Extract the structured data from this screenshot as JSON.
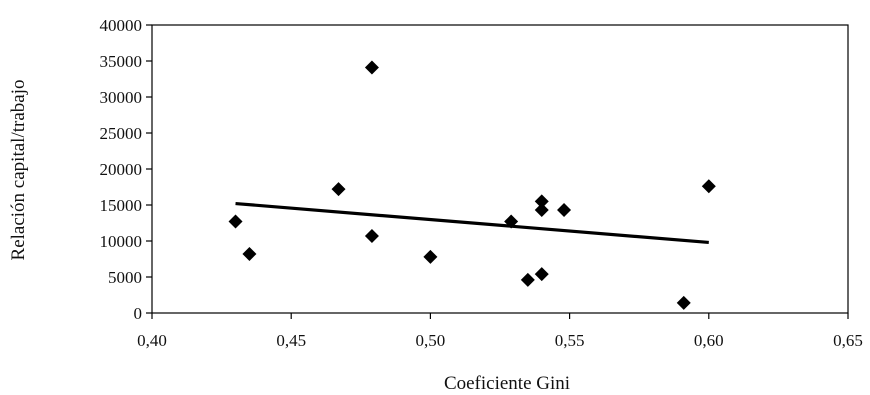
{
  "chart_data": {
    "type": "scatter",
    "title": "",
    "xlabel": "Coeficiente Gini",
    "ylabel": "Relación capital/trabajo",
    "xlim": [
      0.4,
      0.65
    ],
    "ylim": [
      0,
      40000
    ],
    "x_ticks": [
      "0,40",
      "0,45",
      "0,50",
      "0,55",
      "0,60",
      "0,65"
    ],
    "y_ticks": [
      "0",
      "5000",
      "10000",
      "15000",
      "20000",
      "25000",
      "30000",
      "35000",
      "40000"
    ],
    "grid": false,
    "legend": "none",
    "marker": "diamond",
    "colors": {
      "points": "#000000",
      "trendline": "#000000",
      "axes": "#000000"
    },
    "points": [
      {
        "x": 0.43,
        "y": 12700
      },
      {
        "x": 0.435,
        "y": 8200
      },
      {
        "x": 0.467,
        "y": 17200
      },
      {
        "x": 0.479,
        "y": 34100
      },
      {
        "x": 0.479,
        "y": 10700
      },
      {
        "x": 0.5,
        "y": 7800
      },
      {
        "x": 0.529,
        "y": 12700
      },
      {
        "x": 0.535,
        "y": 4600
      },
      {
        "x": 0.54,
        "y": 15500
      },
      {
        "x": 0.54,
        "y": 14300
      },
      {
        "x": 0.54,
        "y": 5400
      },
      {
        "x": 0.548,
        "y": 14300
      },
      {
        "x": 0.591,
        "y": 1400
      },
      {
        "x": 0.6,
        "y": 17600
      }
    ],
    "trendline": {
      "x": [
        0.43,
        0.6
      ],
      "y": [
        15200,
        9800
      ]
    }
  }
}
